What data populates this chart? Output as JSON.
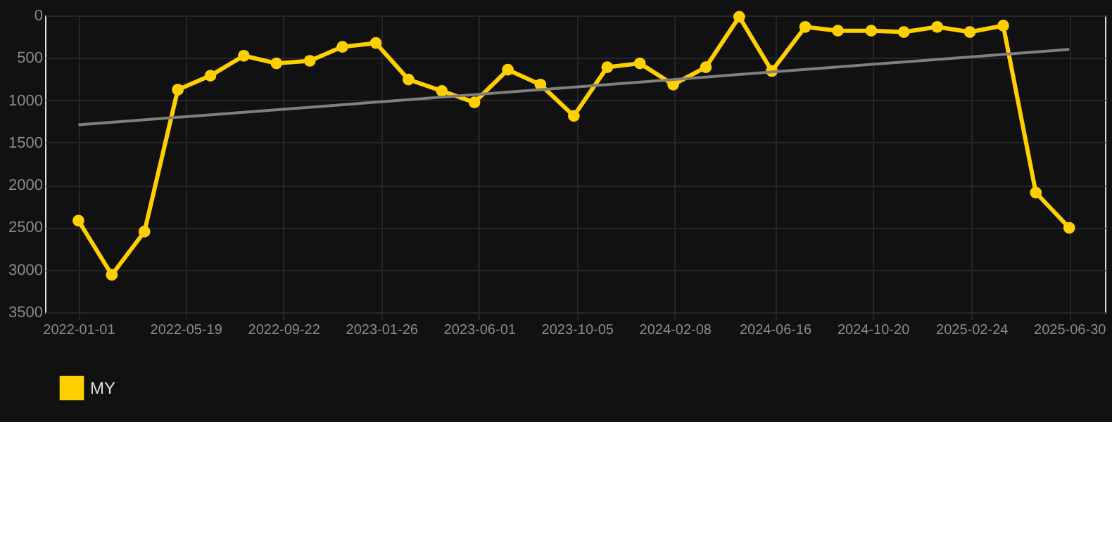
{
  "chart_data": {
    "type": "line",
    "xlim": [
      "2021-11-19",
      "2025-08-15"
    ],
    "xticks": [
      "2022-01-01",
      "2022-05-19",
      "2022-09-22",
      "2023-01-26",
      "2023-06-01",
      "2023-10-05",
      "2024-02-08",
      "2024-06-16",
      "2024-10-20",
      "2025-02-24",
      "2025-06-30"
    ],
    "ylim": [
      3500,
      0
    ],
    "yticks": [
      0,
      500,
      1000,
      1500,
      2000,
      2500,
      3000,
      3500
    ],
    "grid": true,
    "legend": "bottom",
    "marker": "circle",
    "line_style": "solid",
    "series": [
      {
        "name": "MY",
        "color": "#ffd000",
        "x": [
          "2022-01-01",
          "2022-02-13",
          "2022-03-27",
          "2022-05-09",
          "2022-06-20",
          "2022-08-02",
          "2022-09-13",
          "2022-10-26",
          "2022-12-07",
          "2023-01-19",
          "2023-03-02",
          "2023-04-14",
          "2023-05-26",
          "2023-07-08",
          "2023-08-19",
          "2023-10-01",
          "2023-11-13",
          "2023-12-25",
          "2024-02-06",
          "2024-03-19",
          "2024-05-01",
          "2024-06-12",
          "2024-07-25",
          "2024-09-05",
          "2024-10-18",
          "2024-11-29",
          "2025-01-11",
          "2025-02-22",
          "2025-04-06",
          "2025-05-18",
          "2025-06-30"
        ],
        "values": [
          2420,
          3060,
          2550,
          875,
          710,
          475,
          565,
          535,
          370,
          325,
          755,
          890,
          1025,
          640,
          815,
          1185,
          610,
          565,
          815,
          610,
          15,
          655,
          135,
          180,
          180,
          195,
          135,
          195,
          120,
          2090,
          2505
        ]
      },
      {
        "type": "line",
        "marker": "none",
        "color": "#808080",
        "x": [
          "2022-01-01",
          "2025-06-30"
        ],
        "values": [
          1290,
          400
        ]
      }
    ]
  }
}
